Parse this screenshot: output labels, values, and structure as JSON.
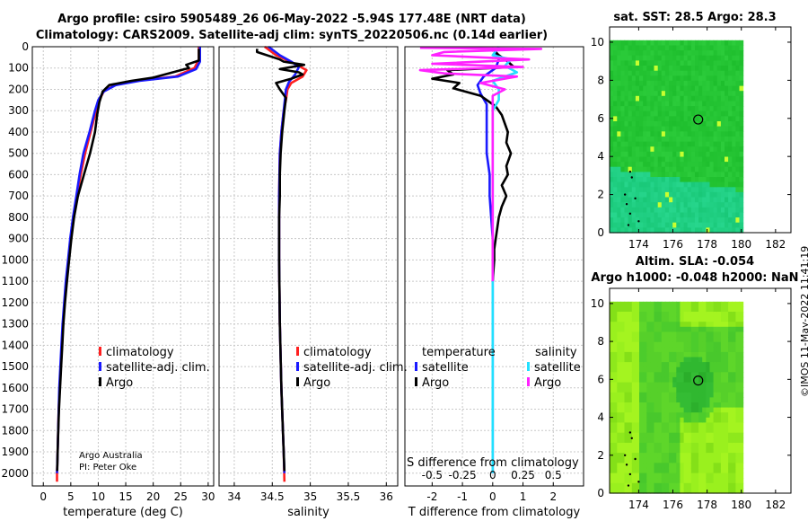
{
  "header": {
    "title_line1": "Argo profile: csiro 5905489_26 06-May-2022 -5.94S 177.48E (NRT data)",
    "title_line2": "Climatology: CARS2009. Satellite-adj clim: synTS_20220506.nc (0.14d earlier)"
  },
  "credit": {
    "line1": "Argo Australia",
    "line2": "PI: Peter Oke"
  },
  "watermark": "©IMOS 11-May-2022 11:41:19",
  "colors": {
    "climatology": "#ff2020",
    "satellite": "#1a1aff",
    "argo": "#000000",
    "sat_salinity": "#22e0ff",
    "argo_salinity": "#ff22ff"
  },
  "chart_data": [
    {
      "type": "line",
      "name": "temperature-profile",
      "xlabel": "temperature (deg C)",
      "xlim": [
        -2,
        31
      ],
      "ylim": [
        2060,
        0
      ],
      "xticks": [
        0,
        5,
        10,
        15,
        20,
        25,
        30
      ],
      "yticks": [
        0,
        100,
        200,
        300,
        400,
        500,
        600,
        700,
        800,
        900,
        1000,
        1100,
        1200,
        1300,
        1400,
        1500,
        1600,
        1700,
        1800,
        1900,
        2000
      ],
      "legend": [
        "climatology",
        "satellite-adj. clim.",
        "Argo"
      ],
      "series": [
        {
          "name": "climatology",
          "points": [
            [
              28.3,
              0
            ],
            [
              28.3,
              60
            ],
            [
              27.5,
              100
            ],
            [
              24,
              140
            ],
            [
              17,
              160
            ],
            [
              13,
              180
            ],
            [
              11,
              210
            ],
            [
              10.2,
              250
            ],
            [
              9.6,
              300
            ],
            [
              8.6,
              400
            ],
            [
              7.6,
              500
            ],
            [
              6.8,
              600
            ],
            [
              6.1,
              700
            ],
            [
              5.5,
              800
            ],
            [
              5.0,
              900
            ],
            [
              4.6,
              1000
            ],
            [
              4.2,
              1100
            ],
            [
              3.9,
              1200
            ],
            [
              3.6,
              1300
            ],
            [
              3.4,
              1400
            ],
            [
              3.2,
              1500
            ],
            [
              3.0,
              1600
            ],
            [
              2.8,
              1700
            ],
            [
              2.7,
              1800
            ],
            [
              2.6,
              1900
            ],
            [
              2.5,
              2000
            ],
            [
              2.5,
              2040
            ]
          ]
        },
        {
          "name": "satellite-adj. clim.",
          "points": [
            [
              28.5,
              0
            ],
            [
              28.5,
              70
            ],
            [
              27.8,
              105
            ],
            [
              24.5,
              140
            ],
            [
              17.5,
              160
            ],
            [
              13.2,
              180
            ],
            [
              11,
              210
            ],
            [
              10,
              250
            ],
            [
              9.4,
              300
            ],
            [
              8.4,
              400
            ],
            [
              7.3,
              500
            ],
            [
              6.6,
              600
            ],
            [
              6.0,
              700
            ],
            [
              5.4,
              800
            ],
            [
              4.9,
              900
            ],
            [
              4.5,
              1000
            ],
            [
              4.1,
              1100
            ],
            [
              3.8,
              1200
            ],
            [
              3.5,
              1300
            ],
            [
              3.3,
              1400
            ],
            [
              3.1,
              1500
            ],
            [
              2.9,
              1600
            ],
            [
              2.8,
              1700
            ],
            [
              2.7,
              1800
            ],
            [
              2.6,
              1900
            ],
            [
              2.5,
              2000
            ]
          ]
        },
        {
          "name": "Argo",
          "points": [
            [
              28.3,
              10
            ],
            [
              28.3,
              65
            ],
            [
              26,
              85
            ],
            [
              26.5,
              100
            ],
            [
              25,
              110
            ],
            [
              20,
              145
            ],
            [
              16,
              160
            ],
            [
              12,
              180
            ],
            [
              10.8,
              210
            ],
            [
              10.2,
              260
            ],
            [
              9.8,
              320
            ],
            [
              9.4,
              400
            ],
            [
              8.5,
              500
            ],
            [
              7.4,
              600
            ],
            [
              6.3,
              700
            ],
            [
              5.6,
              800
            ],
            [
              5.1,
              900
            ],
            [
              4.7,
              1000
            ],
            [
              4.3,
              1100
            ],
            [
              3.95,
              1200
            ],
            [
              3.65,
              1300
            ],
            [
              3.45,
              1400
            ],
            [
              3.25,
              1500
            ],
            [
              3.05,
              1600
            ],
            [
              2.85,
              1700
            ],
            [
              2.72,
              1800
            ],
            [
              2.6,
              1900
            ],
            [
              2.52,
              1990
            ]
          ]
        }
      ]
    },
    {
      "type": "line",
      "name": "salinity-profile",
      "xlabel": "salinity",
      "xlim": [
        33.8,
        36.15
      ],
      "ylim": [
        2060,
        0
      ],
      "xticks": [
        34,
        34.5,
        35,
        35.5,
        36
      ],
      "legend": [
        "climatology",
        "satellite-adj. clim.",
        "Argo"
      ],
      "series": [
        {
          "name": "climatology",
          "points": [
            [
              34.4,
              0
            ],
            [
              34.55,
              40
            ],
            [
              34.8,
              80
            ],
            [
              34.95,
              110
            ],
            [
              34.9,
              140
            ],
            [
              34.75,
              170
            ],
            [
              34.7,
              200
            ],
            [
              34.68,
              250
            ],
            [
              34.65,
              300
            ],
            [
              34.62,
              400
            ],
            [
              34.6,
              500
            ],
            [
              34.59,
              700
            ],
            [
              34.59,
              1000
            ],
            [
              34.6,
              1300
            ],
            [
              34.62,
              1600
            ],
            [
              34.65,
              1900
            ],
            [
              34.66,
              2040
            ]
          ]
        },
        {
          "name": "satellite-adj. clim.",
          "points": [
            [
              34.45,
              0
            ],
            [
              34.6,
              40
            ],
            [
              34.75,
              70
            ],
            [
              34.85,
              95
            ],
            [
              34.8,
              130
            ],
            [
              34.72,
              165
            ],
            [
              34.68,
              200
            ],
            [
              34.65,
              300
            ],
            [
              34.62,
              400
            ],
            [
              34.6,
              500
            ],
            [
              34.59,
              700
            ],
            [
              34.59,
              1000
            ],
            [
              34.6,
              1300
            ],
            [
              34.62,
              1600
            ],
            [
              34.65,
              1900
            ],
            [
              34.66,
              2000
            ]
          ]
        },
        {
          "name": "Argo",
          "points": [
            [
              34.3,
              10
            ],
            [
              34.3,
              25
            ],
            [
              34.6,
              60
            ],
            [
              34.65,
              70
            ],
            [
              34.92,
              85
            ],
            [
              34.6,
              105
            ],
            [
              34.85,
              120
            ],
            [
              34.9,
              130
            ],
            [
              34.75,
              150
            ],
            [
              34.55,
              170
            ],
            [
              34.6,
              200
            ],
            [
              34.68,
              240
            ],
            [
              34.66,
              300
            ],
            [
              34.63,
              400
            ],
            [
              34.61,
              500
            ],
            [
              34.6,
              600
            ],
            [
              34.6,
              700
            ],
            [
              34.59,
              800
            ],
            [
              34.59,
              1000
            ],
            [
              34.6,
              1300
            ],
            [
              34.62,
              1600
            ],
            [
              34.64,
              1800
            ],
            [
              34.66,
              1990
            ]
          ]
        }
      ]
    },
    {
      "type": "line",
      "name": "difference-profile",
      "xlabel": "T difference from climatology",
      "xlabel_top": "S difference from climatology",
      "xlim": [
        -2.9,
        3.0
      ],
      "ylim": [
        2060,
        0
      ],
      "xticks": [
        -2,
        -1,
        0,
        1,
        2
      ],
      "xticks_top": [
        -0.5,
        -0.25,
        0,
        0.25,
        0.5
      ],
      "legend_titles": {
        "temperature": "temperature",
        "salinity": "salinity"
      },
      "legend": [
        "satellite",
        "Argo",
        "satellite",
        "Argo"
      ],
      "series": [
        {
          "name": "temperature satellite",
          "points": [
            [
              0.1,
              30
            ],
            [
              0.2,
              60
            ],
            [
              0.1,
              100
            ],
            [
              -0.3,
              140
            ],
            [
              -0.5,
              180
            ],
            [
              -0.4,
              220
            ],
            [
              -0.2,
              270
            ],
            [
              -0.2,
              340
            ],
            [
              -0.2,
              400
            ],
            [
              -0.2,
              500
            ],
            [
              -0.1,
              600
            ],
            [
              -0.1,
              700
            ],
            [
              -0.05,
              800
            ],
            [
              0,
              900
            ],
            [
              0,
              1000
            ],
            [
              0,
              1200
            ],
            [
              0,
              1600
            ],
            [
              0,
              2000
            ]
          ]
        },
        {
          "name": "temperature Argo",
          "points": [
            [
              0,
              10
            ],
            [
              0.2,
              40
            ],
            [
              0.5,
              70
            ],
            [
              0.7,
              95
            ],
            [
              -1.5,
              110
            ],
            [
              -1.3,
              130
            ],
            [
              -2.0,
              150
            ],
            [
              -1.1,
              170
            ],
            [
              -1.3,
              195
            ],
            [
              -0.4,
              230
            ],
            [
              0.1,
              280
            ],
            [
              0.3,
              320
            ],
            [
              0.5,
              400
            ],
            [
              0.45,
              450
            ],
            [
              0.6,
              500
            ],
            [
              0.45,
              560
            ],
            [
              0.5,
              600
            ],
            [
              0.3,
              650
            ],
            [
              0.45,
              700
            ],
            [
              0.3,
              750
            ],
            [
              0.2,
              800
            ],
            [
              0.15,
              850
            ],
            [
              0.1,
              900
            ],
            [
              0.05,
              950
            ],
            [
              0.05,
              1000
            ],
            [
              0,
              1100
            ]
          ]
        },
        {
          "name": "salinity satellite",
          "points": [
            [
              0.05,
              0
            ],
            [
              0,
              40
            ],
            [
              0.15,
              60
            ],
            [
              0.1,
              90
            ],
            [
              0.2,
              120
            ],
            [
              0,
              160
            ],
            [
              0.05,
              200
            ],
            [
              0.05,
              250
            ],
            [
              0,
              300
            ],
            [
              0,
              400
            ],
            [
              0,
              500
            ],
            [
              0,
              700
            ],
            [
              0,
              1000
            ],
            [
              0,
              1400
            ],
            [
              0,
              1800
            ],
            [
              0,
              2000
            ]
          ]
        },
        {
          "name": "salinity Argo",
          "points": [
            [
              -0.6,
              5
            ],
            [
              0.4,
              10
            ],
            [
              -0.4,
              25
            ],
            [
              -0.5,
              40
            ],
            [
              0.3,
              60
            ],
            [
              -0.5,
              80
            ],
            [
              0.25,
              95
            ],
            [
              -0.6,
              110
            ],
            [
              -0.4,
              125
            ],
            [
              0.2,
              140
            ],
            [
              -0.1,
              170
            ],
            [
              0.1,
              200
            ],
            [
              0,
              230
            ],
            [
              0,
              260
            ],
            [
              0,
              300
            ],
            [
              0,
              400
            ],
            [
              0,
              500
            ],
            [
              0,
              700
            ],
            [
              0,
              1000
            ],
            [
              0,
              1100
            ]
          ]
        }
      ]
    },
    {
      "type": "heatmap",
      "name": "sst-map",
      "title": "sat. SST: 28.5 Argo: 28.3",
      "xlim": [
        172.3,
        182.9
      ],
      "ylim": [
        0,
        10.8
      ],
      "xticks": [
        174,
        176,
        178,
        180,
        182
      ],
      "yticks": [
        0,
        2,
        4,
        6,
        8,
        10
      ],
      "field_extent_lon": [
        172.3,
        180.1
      ],
      "field_extent_lat": [
        0,
        10.1
      ],
      "profile_location": [
        177.48,
        5.94
      ]
    },
    {
      "type": "heatmap",
      "name": "sla-map",
      "title_line1": "Altim. SLA: -0.054",
      "title_line2": "Argo h1000: -0.048 h2000: NaN",
      "xlim": [
        172.3,
        182.9
      ],
      "ylim": [
        0,
        10.8
      ],
      "xticks": [
        174,
        176,
        178,
        180,
        182
      ],
      "yticks": [
        0,
        2,
        4,
        6,
        8,
        10
      ],
      "field_extent_lon": [
        172.3,
        180.1
      ],
      "field_extent_lat": [
        0,
        10.1
      ],
      "profile_location": [
        177.48,
        5.94
      ]
    }
  ]
}
